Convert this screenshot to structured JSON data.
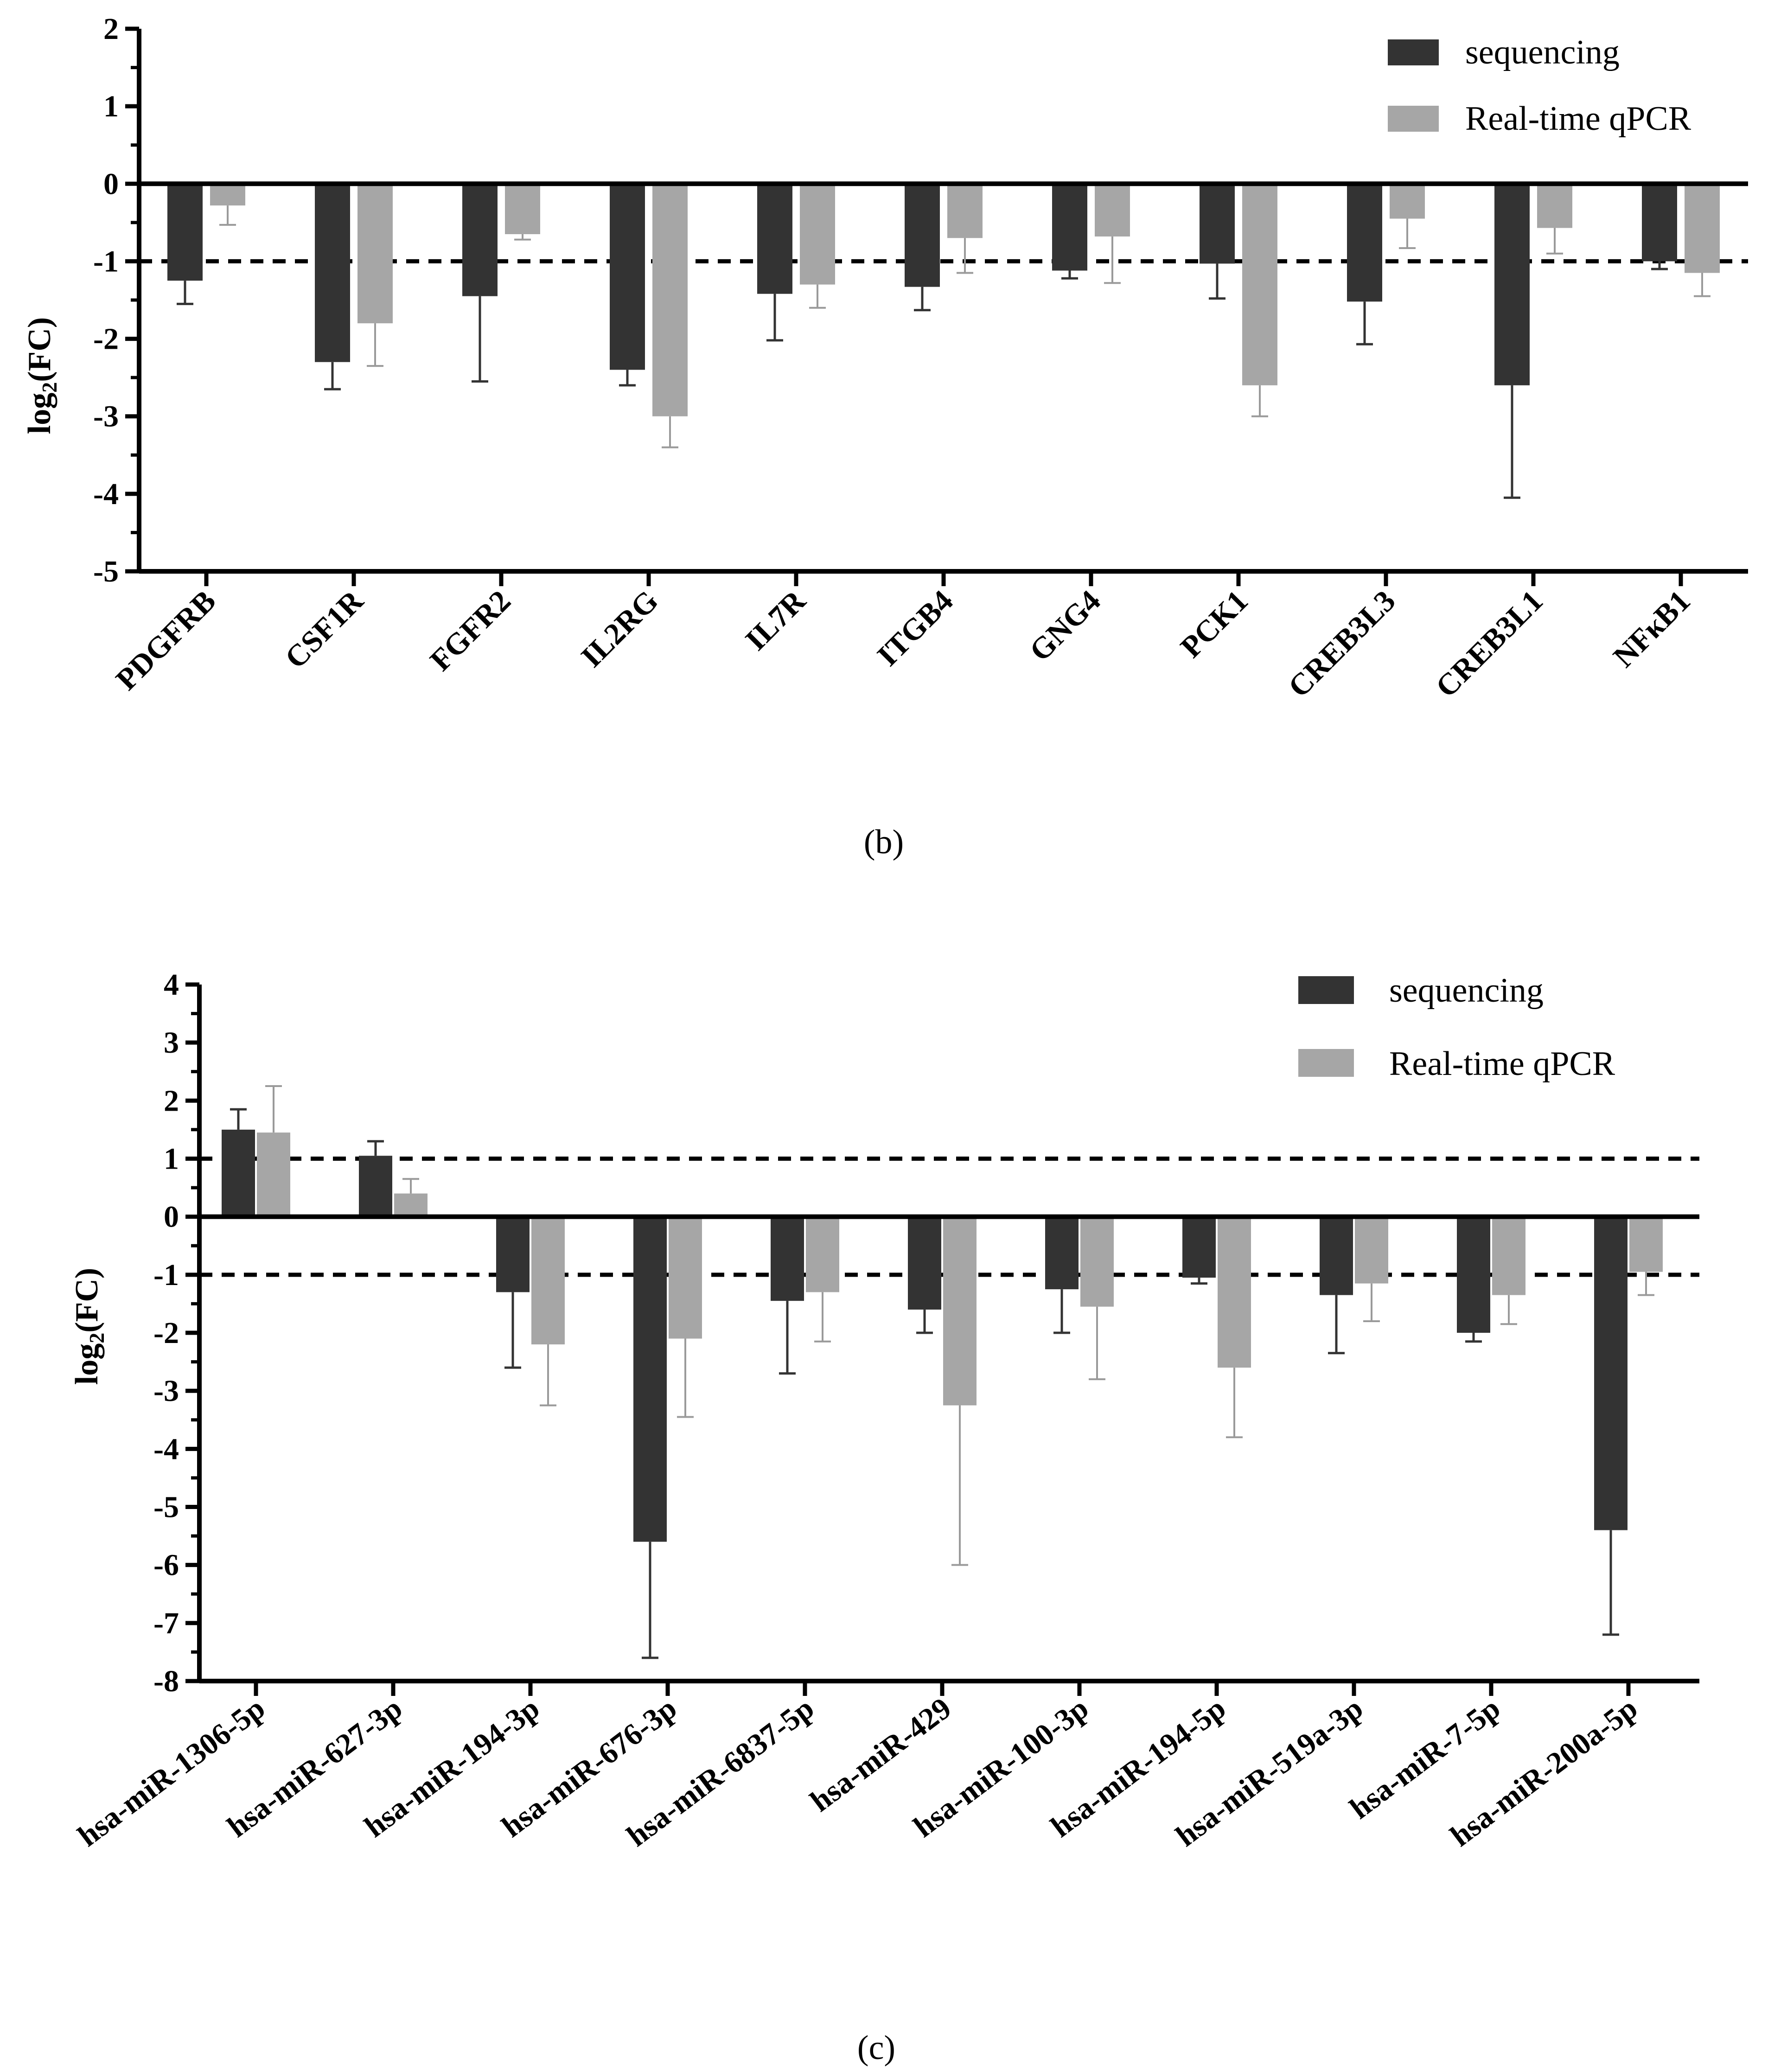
{
  "colors": {
    "sequencing": "#333333",
    "qpcr": "#a6a6a6",
    "axis": "#000000",
    "err_qpcr": "#9a9a9a"
  },
  "chart_data": [
    {
      "type": "bar",
      "panel": "(b)",
      "ylabel_main": "log",
      "ylabel_sub": "2",
      "ylabel_rest": "(FC)",
      "ylim": [
        -5,
        2
      ],
      "yticks": [
        2,
        1,
        0,
        -1,
        -2,
        -3,
        -4,
        -5
      ],
      "threshold_lines": [
        -1
      ],
      "legend": [
        "sequencing",
        "Real-time qPCR"
      ],
      "categories": [
        "PDGFRB",
        "CSF1R",
        "FGFR2",
        "IL2RG",
        "IL7R",
        "ITGB4",
        "GNG4",
        "PCK1",
        "CREB3L3",
        "CREB3L1",
        "NFκB1"
      ],
      "series": [
        {
          "name": "sequencing",
          "values": [
            -1.25,
            -2.3,
            -1.45,
            -2.4,
            -1.42,
            -1.33,
            -1.12,
            -1.03,
            -1.52,
            -2.6,
            -1.0
          ],
          "errors": [
            0.3,
            0.35,
            1.1,
            0.2,
            0.6,
            0.3,
            0.1,
            0.45,
            0.55,
            1.45,
            0.1
          ]
        },
        {
          "name": "Real-time qPCR",
          "values": [
            -0.28,
            -1.8,
            -0.65,
            -3.0,
            -1.3,
            -0.7,
            -0.68,
            -2.6,
            -0.45,
            -0.57,
            -1.15
          ],
          "errors": [
            0.25,
            0.55,
            0.07,
            0.4,
            0.3,
            0.45,
            0.6,
            0.4,
            0.38,
            0.33,
            0.3
          ]
        }
      ]
    },
    {
      "type": "bar",
      "panel": "(c)",
      "ylabel_main": "log",
      "ylabel_sub": "2",
      "ylabel_rest": "(FC)",
      "ylim": [
        -8,
        4
      ],
      "yticks": [
        4,
        3,
        2,
        1,
        0,
        -1,
        -2,
        -3,
        -4,
        -5,
        -6,
        -7,
        -8
      ],
      "threshold_lines": [
        1,
        -1
      ],
      "legend": [
        "sequencing",
        "Real-time qPCR"
      ],
      "categories": [
        "hsa-miR-1306-5p",
        "hsa-miR-627-3p",
        "hsa-miR-194-3p",
        "hsa-miR-676-3p",
        "hsa-miR-6837-5p",
        "hsa-miR-429",
        "hsa-miR-100-3p",
        "hsa-miR-194-5p",
        "hsa-miR-519a-3p",
        "hsa-miR-7-5p",
        "hsa-miR-200a-5p"
      ],
      "series": [
        {
          "name": "sequencing",
          "values": [
            1.5,
            1.05,
            -1.3,
            -5.6,
            -1.45,
            -1.6,
            -1.25,
            -1.05,
            -1.35,
            -2.0,
            -5.4
          ],
          "errors": [
            0.35,
            0.25,
            1.3,
            2.0,
            1.25,
            0.4,
            0.75,
            0.1,
            1.0,
            0.15,
            1.8
          ]
        },
        {
          "name": "Real-time qPCR",
          "values": [
            1.45,
            0.4,
            -2.2,
            -2.1,
            -1.3,
            -3.25,
            -1.55,
            -2.6,
            -1.15,
            -1.35,
            -0.95
          ],
          "errors": [
            0.8,
            0.25,
            1.05,
            1.35,
            0.85,
            2.75,
            1.25,
            1.2,
            0.65,
            0.5,
            0.4
          ]
        }
      ]
    }
  ]
}
